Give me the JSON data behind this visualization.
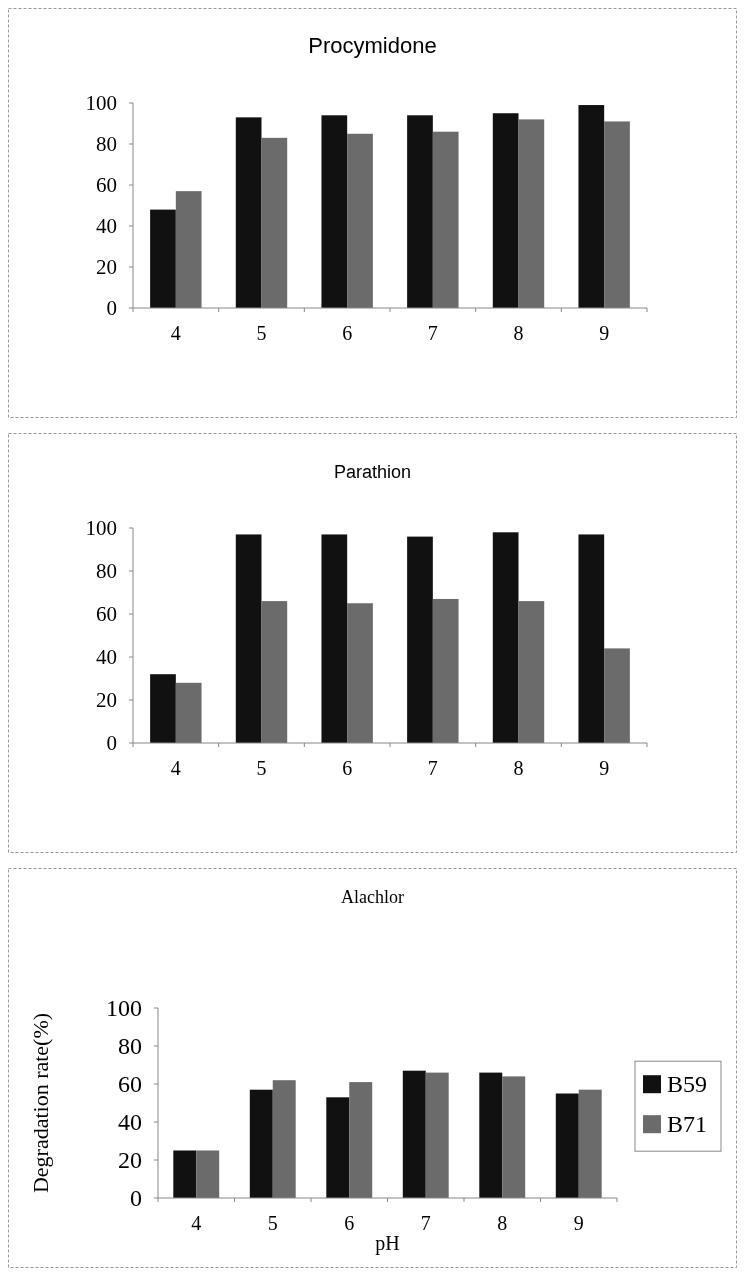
{
  "chart_data": [
    {
      "type": "bar",
      "title": "Procymidone",
      "categories": [
        "4",
        "5",
        "6",
        "7",
        "8",
        "9"
      ],
      "ylim": [
        0,
        100
      ],
      "yticks": [
        0,
        20,
        40,
        60,
        80,
        100
      ],
      "legend": false,
      "series": [
        {
          "color": "#111111",
          "values": [
            48,
            93,
            94,
            94,
            95,
            99
          ]
        },
        {
          "color": "#6b6b6b",
          "values": [
            57,
            83,
            85,
            86,
            92,
            91
          ]
        }
      ]
    },
    {
      "type": "bar",
      "title": "Parathion",
      "categories": [
        "4",
        "5",
        "6",
        "7",
        "8",
        "9"
      ],
      "ylim": [
        0,
        100
      ],
      "yticks": [
        0,
        20,
        40,
        60,
        80,
        100
      ],
      "legend": false,
      "series": [
        {
          "color": "#111111",
          "values": [
            32,
            97,
            97,
            96,
            98,
            97
          ]
        },
        {
          "color": "#6b6b6b",
          "values": [
            28,
            66,
            65,
            67,
            66,
            44
          ]
        }
      ]
    },
    {
      "type": "bar",
      "title": "Alachlor",
      "xlabel": "pH",
      "ylabel": "Degradation rate(%)",
      "categories": [
        "4",
        "5",
        "6",
        "7",
        "8",
        "9"
      ],
      "ylim": [
        0,
        100
      ],
      "yticks": [
        0,
        20,
        40,
        60,
        80,
        100
      ],
      "legend": "right",
      "series": [
        {
          "name": "B59",
          "color": "#111111",
          "values": [
            25,
            57,
            53,
            67,
            66,
            55
          ]
        },
        {
          "name": "B71",
          "color": "#6b6b6b",
          "values": [
            25,
            62,
            61,
            66,
            64,
            57
          ]
        }
      ]
    }
  ]
}
